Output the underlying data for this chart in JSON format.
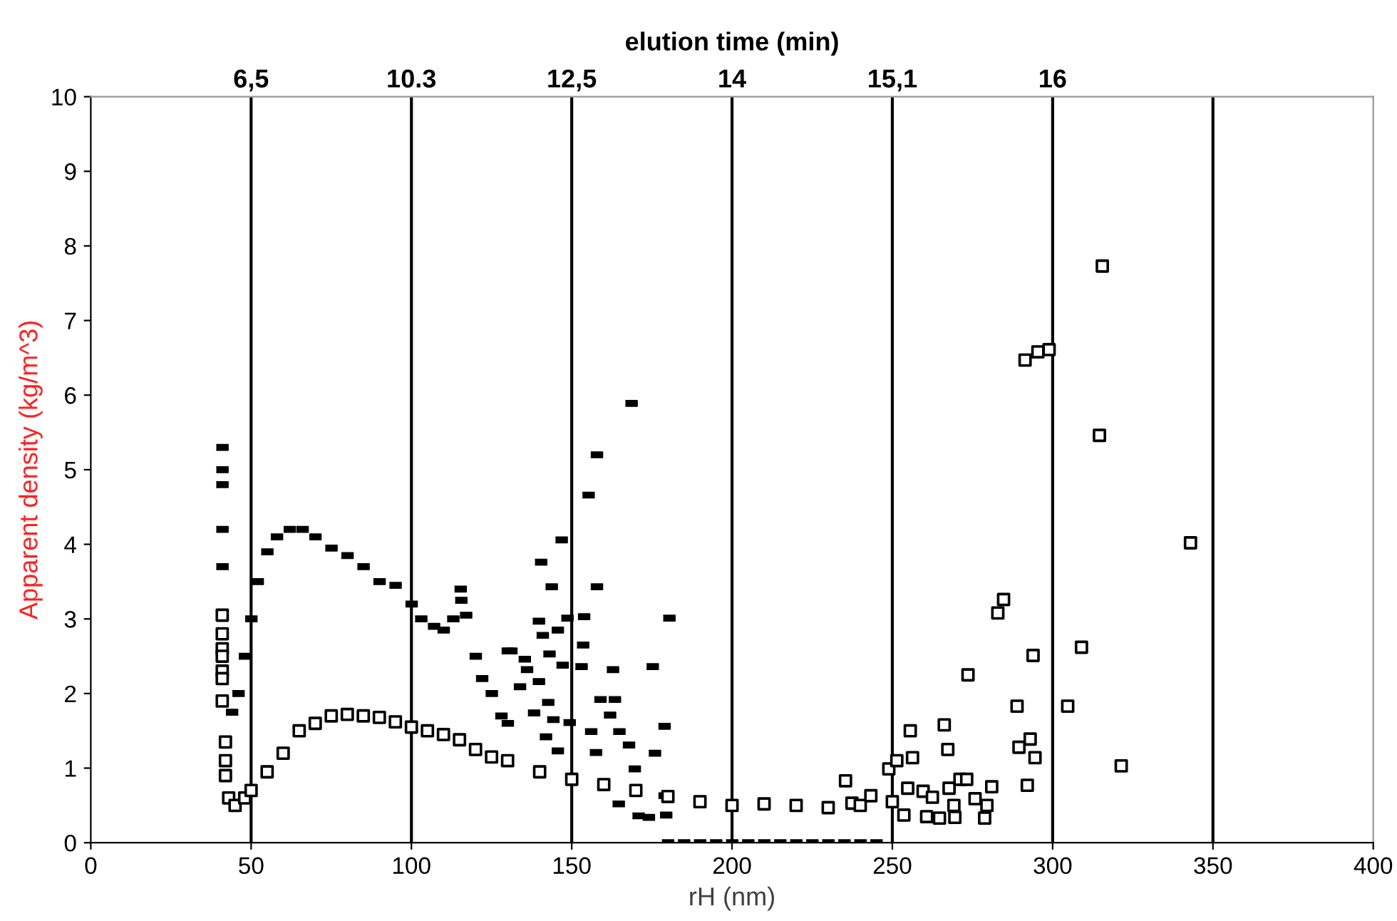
{
  "chart_data": {
    "type": "scatter",
    "xlabel": "rH (nm)",
    "ylabel": "Apparent density (kg/m^3)",
    "xlim": [
      0,
      400
    ],
    "xticks": [
      0,
      50,
      100,
      150,
      200,
      250,
      300,
      350,
      400
    ],
    "ylim": [
      0,
      10
    ],
    "yticks": [
      0,
      1,
      2,
      3,
      4,
      5,
      6,
      7,
      8,
      9,
      10
    ],
    "annotations": [
      "elution time (min)",
      {
        "text": "6,5",
        "x": 50,
        "y": 10
      },
      {
        "text": "10.3",
        "x": 100,
        "y": 10
      },
      {
        "text": "12,5",
        "x": 150,
        "y": 10
      },
      {
        "text": "14",
        "x": 200,
        "y": 10
      },
      {
        "text": "15,1",
        "x": 250,
        "y": 10
      },
      {
        "text": "16",
        "x": 300,
        "y": 10
      }
    ],
    "ref_lines": [
      {
        "axis": "x",
        "value": 50
      },
      {
        "axis": "x",
        "value": 100
      },
      {
        "axis": "x",
        "value": 150
      },
      {
        "axis": "x",
        "value": 200
      },
      {
        "axis": "x",
        "value": 250
      },
      {
        "axis": "x",
        "value": 300
      },
      {
        "axis": "x",
        "value": 350
      }
    ],
    "legend": false,
    "series": [
      {
        "color": "#000000",
        "x": [
          41,
          41,
          41,
          41,
          41,
          44,
          46,
          48,
          50,
          52,
          55,
          58,
          62,
          66,
          70,
          75,
          80,
          85,
          90,
          95,
          100,
          103,
          107,
          110,
          113,
          115.3,
          115.5,
          117,
          120,
          122,
          125,
          128,
          130,
          130,
          131.1,
          133.8,
          135.3,
          136,
          138.2,
          139.7,
          139.7,
          140.4,
          140.9,
          141.9,
          142.6,
          143,
          143.7,
          144.2,
          145.6,
          145.6,
          146.8,
          147.1,
          148.6,
          149.3,
          153,
          153.5,
          153.8,
          155.2,
          156,
          157.5,
          157.8,
          157.8,
          158.9,
          161.9,
          162.8,
          163.4,
          164.6,
          164.8,
          167.8,
          168.6,
          169.6,
          170.8,
          174,
          175.2,
          175.9,
          178.9,
          178.9,
          179.4,
          180.4,
          180,
          185,
          190,
          195,
          200,
          205,
          210,
          215,
          220,
          225,
          230,
          235,
          240,
          245
        ],
        "values": [
          5.3,
          5.0,
          4.8,
          4.2,
          3.7,
          1.75,
          2.0,
          2.5,
          3.0,
          3.5,
          3.9,
          4.1,
          4.2,
          4.2,
          4.1,
          3.95,
          3.85,
          3.7,
          3.5,
          3.45,
          3.2,
          3.0,
          2.9,
          2.85,
          3.0,
          3.4,
          3.25,
          3.05,
          2.5,
          2.2,
          2.0,
          1.7,
          1.6,
          2.57,
          2.57,
          2.09,
          2.46,
          2.32,
          1.74,
          2.97,
          2.16,
          3.76,
          2.78,
          1.42,
          1.88,
          2.53,
          3.43,
          1.65,
          2.85,
          1.23,
          4.06,
          2.38,
          3.01,
          1.61,
          2.36,
          2.65,
          3.03,
          4.66,
          1.49,
          1.21,
          5.2,
          3.43,
          1.92,
          1.71,
          2.32,
          1.92,
          0.52,
          1.49,
          1.31,
          5.89,
          0.99,
          0.36,
          0.34,
          2.36,
          1.2,
          1.56,
          0.63,
          0.37,
          3.01,
          0,
          0,
          0,
          0,
          0,
          0,
          0,
          0,
          0,
          0,
          0,
          0,
          0,
          0
        ]
      },
      {
        "color": "#000000",
        "marker": "square",
        "x": [
          41,
          41,
          41,
          41,
          41,
          41,
          41,
          42,
          42,
          42,
          43,
          45,
          48,
          50,
          55,
          60,
          65,
          70,
          75,
          80,
          85,
          90,
          95,
          100,
          105,
          110,
          115,
          120,
          125,
          130,
          140,
          150,
          160,
          170,
          180,
          190,
          200,
          210,
          220,
          230,
          235.4,
          237.4,
          240,
          243.3,
          248.9,
          250,
          251.4,
          253.6,
          254.8,
          255.6,
          256.3,
          259.6,
          260.7,
          262.5,
          264.7,
          266.2,
          267.3,
          267.7,
          269.2,
          269.5,
          271.1,
          273.2,
          273.6,
          275.8,
          278.8,
          279.5,
          281,
          282.9,
          284.7,
          288.9,
          289.5,
          291.4,
          292.1,
          293,
          293.9,
          294.5,
          295.4,
          298.9,
          304.7,
          309,
          314.6,
          315.5,
          321.4,
          343
        ],
        "values": [
          3.05,
          2.8,
          2.6,
          2.5,
          2.3,
          2.2,
          1.9,
          1.35,
          1.1,
          0.9,
          0.6,
          0.5,
          0.6,
          0.7,
          0.95,
          1.2,
          1.5,
          1.6,
          1.7,
          1.72,
          1.7,
          1.68,
          1.62,
          1.55,
          1.5,
          1.45,
          1.38,
          1.25,
          1.15,
          1.1,
          0.95,
          0.85,
          0.78,
          0.7,
          0.62,
          0.55,
          0.5,
          0.52,
          0.5,
          0.47,
          0.83,
          0.53,
          0.5,
          0.63,
          0.99,
          0.55,
          1.1,
          0.37,
          0.73,
          1.5,
          1.14,
          0.69,
          0.35,
          0.61,
          0.33,
          1.58,
          1.25,
          0.73,
          0.5,
          0.34,
          0.85,
          0.85,
          2.25,
          0.59,
          0.33,
          0.5,
          0.75,
          3.08,
          3.26,
          1.83,
          1.28,
          6.47,
          0.77,
          1.39,
          2.51,
          1.14,
          6.58,
          6.61,
          1.83,
          2.62,
          5.46,
          7.73,
          1.03,
          4.02
        ]
      }
    ]
  }
}
